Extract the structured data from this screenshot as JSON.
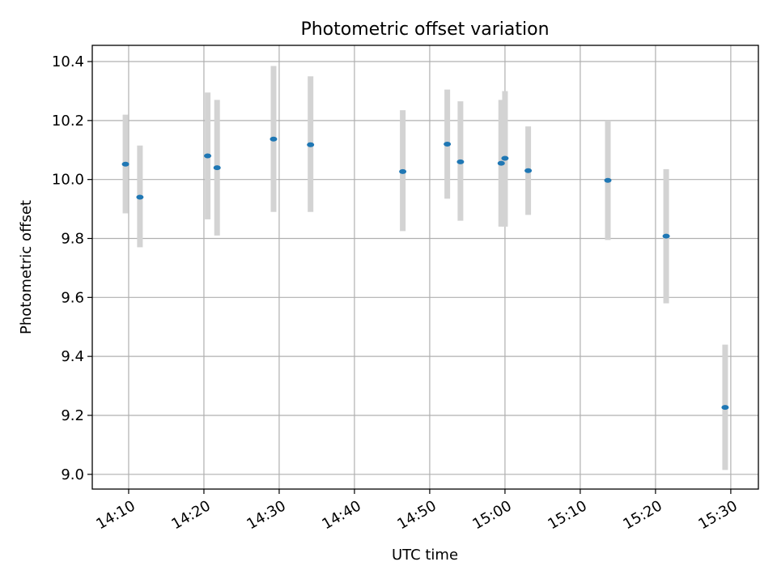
{
  "chart_data": {
    "type": "scatter",
    "title": "Photometric offset variation",
    "xlabel": "UTC time",
    "ylabel": "Photometric offset",
    "xlim": [
      "14:05:10",
      "15:33:40"
    ],
    "ylim": [
      8.95,
      10.455
    ],
    "grid": true,
    "x_ticks": [
      "14:10",
      "14:20",
      "14:30",
      "14:40",
      "14:50",
      "15:00",
      "15:10",
      "15:20",
      "15:30"
    ],
    "y_ticks": [
      "9.0",
      "9.2",
      "9.4",
      "9.6",
      "9.8",
      "10.0",
      "10.2",
      "10.4"
    ],
    "marker_color": "#1f77b4",
    "errorbar_color": "#d3d3d3",
    "points": [
      {
        "time": "14:09:35",
        "y": 10.052,
        "ylow": 9.885,
        "yhigh": 10.22
      },
      {
        "time": "14:11:30",
        "y": 9.94,
        "ylow": 9.77,
        "yhigh": 10.115
      },
      {
        "time": "14:20:30",
        "y": 10.08,
        "ylow": 9.865,
        "yhigh": 10.295
      },
      {
        "time": "14:21:45",
        "y": 10.04,
        "ylow": 9.81,
        "yhigh": 10.27
      },
      {
        "time": "14:29:15",
        "y": 10.137,
        "ylow": 9.89,
        "yhigh": 10.385
      },
      {
        "time": "14:34:10",
        "y": 10.118,
        "ylow": 9.89,
        "yhigh": 10.35
      },
      {
        "time": "14:46:25",
        "y": 10.027,
        "ylow": 9.825,
        "yhigh": 10.235
      },
      {
        "time": "14:52:20",
        "y": 10.12,
        "ylow": 9.935,
        "yhigh": 10.305
      },
      {
        "time": "14:54:05",
        "y": 10.06,
        "ylow": 9.86,
        "yhigh": 10.265
      },
      {
        "time": "14:59:30",
        "y": 10.055,
        "ylow": 9.84,
        "yhigh": 10.27
      },
      {
        "time": "15:00:00",
        "y": 10.072,
        "ylow": 9.84,
        "yhigh": 10.3
      },
      {
        "time": "15:03:05",
        "y": 10.03,
        "ylow": 9.88,
        "yhigh": 10.18
      },
      {
        "time": "15:13:40",
        "y": 9.997,
        "ylow": 9.795,
        "yhigh": 10.2
      },
      {
        "time": "15:21:25",
        "y": 9.808,
        "ylow": 9.58,
        "yhigh": 10.035
      },
      {
        "time": "15:29:15",
        "y": 9.227,
        "ylow": 9.015,
        "yhigh": 9.44
      }
    ]
  }
}
